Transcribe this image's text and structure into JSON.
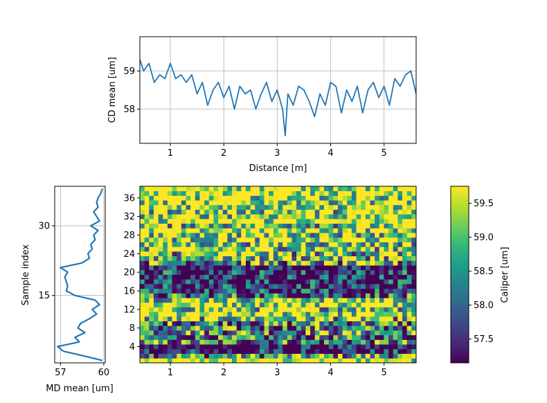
{
  "colors": {
    "line": "#1f77b4",
    "grid": "#b0b0b0",
    "viridis": [
      "#440154",
      "#482878",
      "#3e4989",
      "#31688e",
      "#26828e",
      "#1f9e89",
      "#35b779",
      "#6ece58",
      "#b5de2b",
      "#fde725"
    ]
  },
  "chart_data": [
    {
      "id": "cd",
      "type": "line",
      "xlabel": "Distance [m]",
      "ylabel": "CD mean [um]",
      "xlim": [
        0.43,
        5.6
      ],
      "ylim": [
        57.1,
        59.9
      ],
      "xticks": [
        "1",
        "2",
        "3",
        "4",
        "5"
      ],
      "yticks": [
        "58",
        "59"
      ],
      "grid": true,
      "x": [
        0.43,
        0.5,
        0.6,
        0.7,
        0.8,
        0.9,
        1.0,
        1.1,
        1.2,
        1.3,
        1.4,
        1.5,
        1.6,
        1.7,
        1.8,
        1.9,
        2.0,
        2.1,
        2.2,
        2.3,
        2.4,
        2.5,
        2.6,
        2.7,
        2.8,
        2.9,
        3.0,
        3.1,
        3.15,
        3.2,
        3.3,
        3.4,
        3.5,
        3.6,
        3.7,
        3.8,
        3.9,
        4.0,
        4.1,
        4.2,
        4.3,
        4.4,
        4.5,
        4.6,
        4.7,
        4.8,
        4.9,
        5.0,
        5.1,
        5.2,
        5.3,
        5.4,
        5.5,
        5.6
      ],
      "y": [
        59.3,
        59.0,
        59.2,
        58.7,
        58.9,
        58.8,
        59.2,
        58.8,
        58.9,
        58.7,
        58.9,
        58.4,
        58.7,
        58.1,
        58.5,
        58.7,
        58.3,
        58.6,
        58.0,
        58.6,
        58.4,
        58.5,
        58.0,
        58.4,
        58.7,
        58.2,
        58.5,
        58.0,
        57.3,
        58.4,
        58.1,
        58.6,
        58.5,
        58.2,
        57.8,
        58.4,
        58.1,
        58.7,
        58.6,
        57.9,
        58.5,
        58.2,
        58.6,
        57.9,
        58.5,
        58.7,
        58.3,
        58.6,
        58.1,
        58.8,
        58.6,
        58.9,
        59.0,
        58.4
      ]
    },
    {
      "id": "md",
      "type": "line",
      "xlabel": "MD mean [um]",
      "ylabel": "Sample index",
      "xlim": [
        56.6,
        60.1
      ],
      "ylim": [
        0.5,
        38.5
      ],
      "xticks": [
        "57",
        "60"
      ],
      "yticks": [
        "15",
        "30"
      ],
      "grid": true,
      "x": [
        59.9,
        58.6,
        57.2,
        56.8,
        58.3,
        58.0,
        58.7,
        58.2,
        58.4,
        59.0,
        59.5,
        59.2,
        59.7,
        59.4,
        58.0,
        57.4,
        57.5,
        57.4,
        57.3,
        57.5,
        57.0,
        58.5,
        59.0,
        58.9,
        59.2,
        59.1,
        59.4,
        59.3,
        59.6,
        59.1,
        59.7,
        59.5,
        59.3,
        59.6,
        59.5,
        59.6,
        59.8,
        59.9
      ],
      "y": [
        1,
        2,
        3,
        4,
        5,
        6,
        7,
        8,
        9,
        10,
        11,
        12,
        13,
        14,
        15,
        16,
        17,
        18,
        19,
        20,
        21,
        22,
        23,
        24,
        25,
        26,
        27,
        28,
        29,
        30,
        31,
        32,
        33,
        34,
        35,
        36,
        37,
        38
      ]
    },
    {
      "id": "map",
      "type": "heatmap",
      "xlim": [
        0.43,
        5.6
      ],
      "ylim": [
        0.5,
        38.5
      ],
      "xticks": [
        "1",
        "2",
        "3",
        "4",
        "5"
      ],
      "yticks": [
        "4",
        "8",
        "12",
        "16",
        "20",
        "24",
        "28",
        "32",
        "36"
      ],
      "rows": 38,
      "cols": 60,
      "row_means": [
        59.9,
        58.6,
        57.2,
        56.8,
        58.3,
        58.0,
        58.7,
        58.2,
        58.4,
        59.0,
        59.5,
        59.2,
        59.7,
        59.4,
        58.0,
        57.4,
        57.5,
        57.4,
        57.3,
        57.5,
        57.0,
        58.5,
        59.0,
        58.9,
        59.2,
        59.1,
        59.4,
        59.3,
        59.6,
        59.1,
        59.7,
        59.5,
        59.3,
        59.6,
        59.5,
        59.6,
        59.8,
        59.9
      ]
    },
    {
      "id": "colorbar",
      "type": "colorbar",
      "label": "Caliper [um]",
      "range": [
        57.15,
        59.75
      ],
      "ticks": [
        "57.5",
        "58.0",
        "58.5",
        "59.0",
        "59.5"
      ]
    }
  ]
}
